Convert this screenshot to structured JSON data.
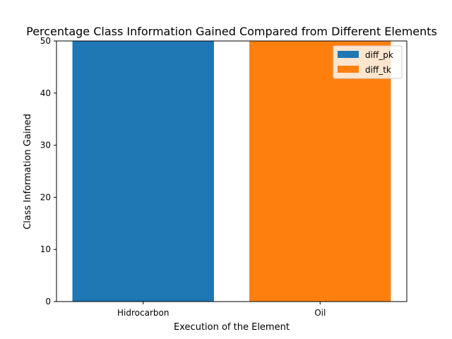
{
  "chart_data": {
    "type": "bar",
    "title": "Percentage Class Information Gained Compared from Different Elements",
    "xlabel": "Execution of the Element",
    "ylabel": "Class Information Gained",
    "categories": [
      "Hidrocarbon",
      "Oil"
    ],
    "series": [
      {
        "name": "diff_pk",
        "category": "Hidrocarbon",
        "value": 50,
        "color": "#1f77b4"
      },
      {
        "name": "diff_tk",
        "category": "Oil",
        "value": 50,
        "color": "#ff7f0e"
      }
    ],
    "ylim": [
      0,
      50
    ],
    "yticks": [
      0,
      10,
      20,
      30,
      40,
      50
    ],
    "grid": false,
    "legend_position": "top-right"
  }
}
